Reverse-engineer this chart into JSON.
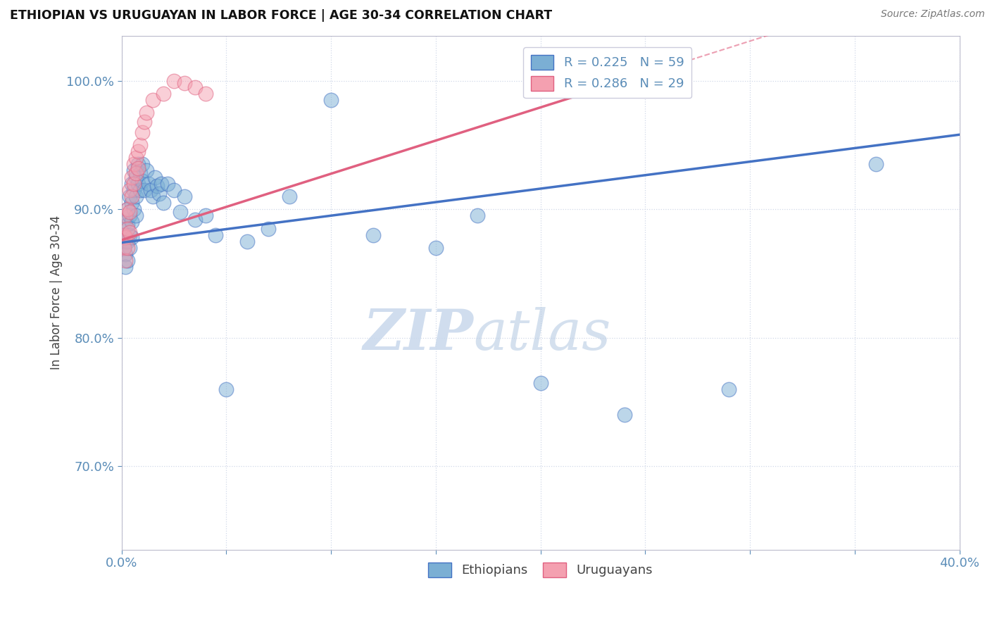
{
  "title": "ETHIOPIAN VS URUGUAYAN IN LABOR FORCE | AGE 30-34 CORRELATION CHART",
  "source": "Source: ZipAtlas.com",
  "ylabel": "In Labor Force | Age 30-34",
  "xlim": [
    0.0,
    0.4
  ],
  "ylim": [
    0.635,
    1.035
  ],
  "yticks": [
    0.7,
    0.8,
    0.9,
    1.0
  ],
  "ytick_labels": [
    "70.0%",
    "80.0%",
    "90.0%",
    "100.0%"
  ],
  "xtick_positions": [
    0.0,
    0.05,
    0.1,
    0.15,
    0.2,
    0.25,
    0.3,
    0.35,
    0.4
  ],
  "xtick_labels": [
    "0.0%",
    "",
    "",
    "",
    "",
    "",
    "",
    "",
    "40.0%"
  ],
  "r_ethiopian": 0.225,
  "n_ethiopian": 59,
  "r_uruguayan": 0.286,
  "n_uruguayan": 29,
  "blue_color": "#7BAFD4",
  "pink_color": "#F4A0B0",
  "blue_line_color": "#4472C4",
  "pink_line_color": "#E06080",
  "tick_color": "#5B8DB8",
  "grid_color": "#D0D8E8",
  "watermark_zip": "ZIP",
  "watermark_atlas": "atlas",
  "ethiopians_x": [
    0.001,
    0.001,
    0.002,
    0.002,
    0.002,
    0.002,
    0.003,
    0.003,
    0.003,
    0.003,
    0.004,
    0.004,
    0.004,
    0.004,
    0.005,
    0.005,
    0.005,
    0.005,
    0.006,
    0.006,
    0.006,
    0.007,
    0.007,
    0.007,
    0.008,
    0.008,
    0.009,
    0.009,
    0.01,
    0.01,
    0.011,
    0.012,
    0.013,
    0.014,
    0.015,
    0.016,
    0.017,
    0.018,
    0.019,
    0.02,
    0.022,
    0.025,
    0.028,
    0.03,
    0.035,
    0.04,
    0.045,
    0.05,
    0.06,
    0.07,
    0.08,
    0.1,
    0.12,
    0.15,
    0.17,
    0.2,
    0.24,
    0.29,
    0.36
  ],
  "ethiopians_y": [
    0.88,
    0.87,
    0.89,
    0.875,
    0.865,
    0.855,
    0.9,
    0.888,
    0.875,
    0.86,
    0.91,
    0.895,
    0.88,
    0.87,
    0.92,
    0.905,
    0.89,
    0.878,
    0.93,
    0.915,
    0.9,
    0.925,
    0.91,
    0.895,
    0.935,
    0.92,
    0.928,
    0.915,
    0.935,
    0.922,
    0.915,
    0.93,
    0.92,
    0.915,
    0.91,
    0.925,
    0.918,
    0.912,
    0.92,
    0.905,
    0.92,
    0.915,
    0.898,
    0.91,
    0.892,
    0.895,
    0.88,
    0.76,
    0.875,
    0.885,
    0.91,
    0.985,
    0.88,
    0.87,
    0.895,
    0.765,
    0.74,
    0.76,
    0.935
  ],
  "uruguayans_x": [
    0.001,
    0.001,
    0.002,
    0.002,
    0.002,
    0.003,
    0.003,
    0.003,
    0.004,
    0.004,
    0.004,
    0.005,
    0.005,
    0.006,
    0.006,
    0.007,
    0.007,
    0.008,
    0.008,
    0.009,
    0.01,
    0.011,
    0.012,
    0.015,
    0.02,
    0.025,
    0.03,
    0.035,
    0.04
  ],
  "uruguayans_y": [
    0.88,
    0.87,
    0.895,
    0.878,
    0.86,
    0.9,
    0.885,
    0.87,
    0.915,
    0.898,
    0.882,
    0.925,
    0.91,
    0.935,
    0.92,
    0.94,
    0.928,
    0.945,
    0.932,
    0.95,
    0.96,
    0.968,
    0.975,
    0.985,
    0.99,
    1.0,
    0.998,
    0.995,
    0.99
  ],
  "regression_blue_x0": 0.0,
  "regression_blue_y0": 0.874,
  "regression_blue_x1": 0.4,
  "regression_blue_y1": 0.958,
  "regression_pink_x0": 0.0,
  "regression_pink_y0": 0.876,
  "regression_pink_x1": 0.25,
  "regression_pink_y1": 1.005,
  "regression_pink_dashed_x0": 0.0,
  "regression_pink_dashed_y0": 0.876,
  "regression_pink_dashed_x1": 0.25,
  "regression_pink_dashed_y1": 1.005
}
